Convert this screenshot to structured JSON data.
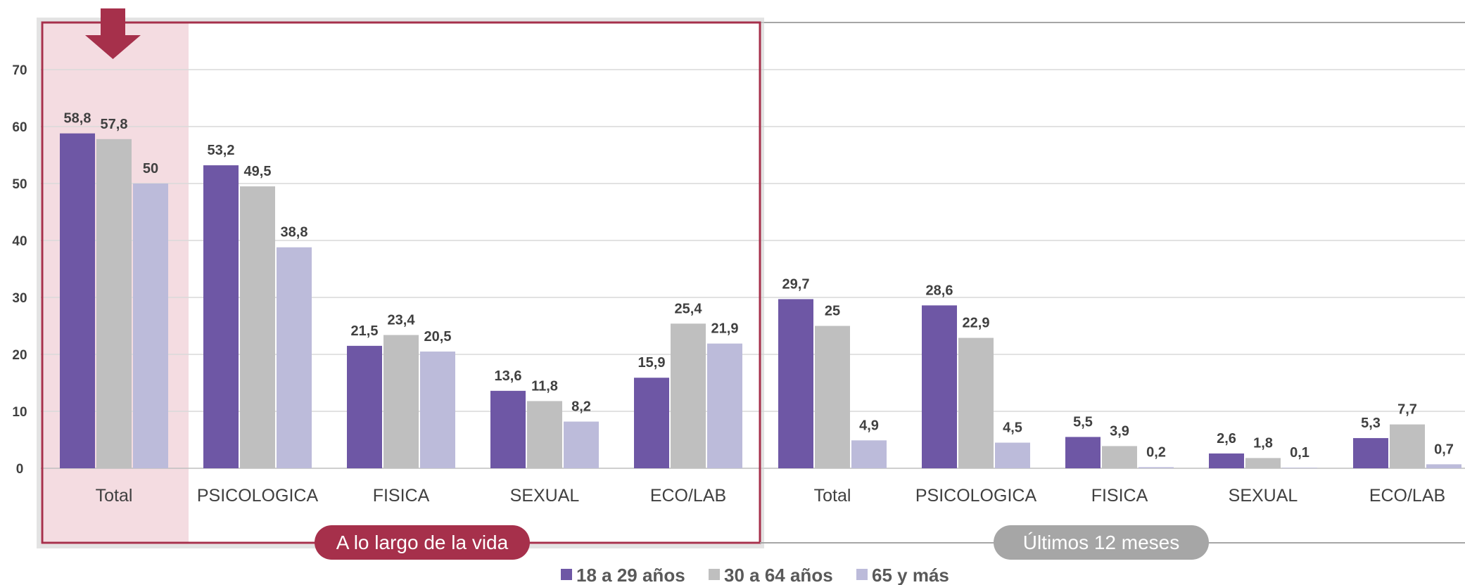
{
  "chart_data": {
    "type": "bar",
    "ylim": [
      0,
      78
    ],
    "yticks": [
      "0",
      "10",
      "20",
      "30",
      "40",
      "50",
      "60",
      "70"
    ],
    "grid": true,
    "legend_position": "bottom",
    "groups": [
      {
        "label": "A lo largo de la vida",
        "categories": [
          "Total",
          "PSICOLOGICA",
          "FISICA",
          "SEXUAL",
          "ECO/LAB"
        ],
        "series": [
          {
            "name": "18 a 29 años",
            "values": [
              58.8,
              53.2,
              21.5,
              13.6,
              15.9
            ],
            "labels": [
              "58,8",
              "53,2",
              "21,5",
              "13,6",
              "15,9"
            ]
          },
          {
            "name": "30 a 64 años",
            "values": [
              57.8,
              49.5,
              23.4,
              11.8,
              25.4
            ],
            "labels": [
              "57,8",
              "49,5",
              "23,4",
              "11,8",
              "25,4"
            ]
          },
          {
            "name": "65 y más",
            "values": [
              50,
              38.8,
              20.5,
              8.2,
              21.9
            ],
            "labels": [
              "50",
              "38,8",
              "20,5",
              "8,2",
              "21,9"
            ]
          }
        ]
      },
      {
        "label": "Últimos 12 meses",
        "categories": [
          "Total",
          "PSICOLOGICA",
          "FISICA",
          "SEXUAL",
          "ECO/LAB"
        ],
        "series": [
          {
            "name": "18 a 29 años",
            "values": [
              29.7,
              28.6,
              5.5,
              2.6,
              5.3
            ],
            "labels": [
              "29,7",
              "28,6",
              "5,5",
              "2,6",
              "5,3"
            ]
          },
          {
            "name": "30 a 64 años",
            "values": [
              25,
              22.9,
              3.9,
              1.8,
              7.7
            ],
            "labels": [
              "25",
              "22,9",
              "3,9",
              "1,8",
              "7,7"
            ]
          },
          {
            "name": "65 y más",
            "values": [
              4.9,
              4.5,
              0.2,
              0.1,
              0.7
            ],
            "labels": [
              "4,9",
              "4,5",
              "0,2",
              "0,1",
              "0,7"
            ]
          }
        ]
      }
    ],
    "legend": [
      "18 a 29 años",
      "30 a 64 años",
      "65 y más"
    ],
    "colors": {
      "series": [
        "#6E57A5",
        "#BFBFBF",
        "#BCBBDA"
      ],
      "highlight_fill": "#F4DCE1",
      "frame": "#A6304B",
      "pill_first": "#A6304B",
      "pill_second": "#A6A6A6",
      "arrow": "#A6304B"
    }
  }
}
